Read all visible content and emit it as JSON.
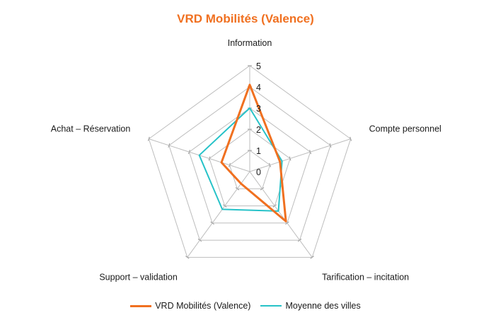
{
  "chart_data": {
    "type": "radar",
    "title": "VRD Mobilités (Valence)",
    "categories": [
      "Information",
      "Compte personnel",
      "Tarification – incitation",
      "Support – validation",
      "Achat – Réservation"
    ],
    "rlim": [
      0,
      5
    ],
    "ticks": [
      "0",
      "1",
      "2",
      "3",
      "4",
      "5"
    ],
    "series": [
      {
        "name": "VRD Mobilités (Valence)",
        "color": "#f07020",
        "values": [
          4.1,
          1.5,
          2.9,
          0.7,
          1.4
        ]
      },
      {
        "name": "Moyenne des villes",
        "color": "#26c2c8",
        "values": [
          3.0,
          1.6,
          2.3,
          2.2,
          2.5
        ]
      }
    ],
    "legend_position": "bottom"
  }
}
